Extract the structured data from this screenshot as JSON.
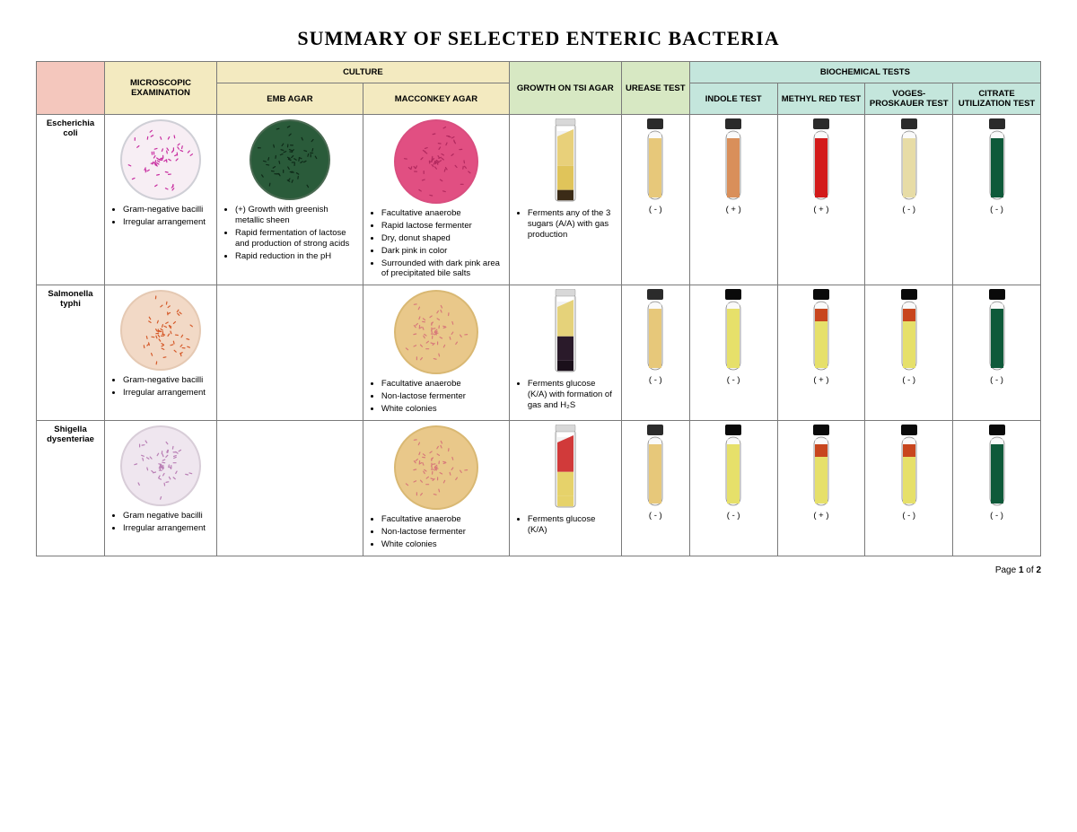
{
  "title": "SUMMARY OF SELECTED ENTERIC BACTERIA",
  "footer": {
    "prefix": "Page ",
    "current": "1",
    "of": " of ",
    "total": "2"
  },
  "colors": {
    "hdr_pink": "#f4c7bd",
    "hdr_cream": "#f3eac0",
    "hdr_green": "#d7e8c3",
    "hdr_teal": "#c4e6dc",
    "border": "#7a7a7a"
  },
  "headers": {
    "microscopic": "MICROSCOPIC EXAMINATION",
    "culture": "CULTURE",
    "emb": "EMB AGAR",
    "macconkey": "MACCONKEY AGAR",
    "tsi": "GROWTH ON TSI AGAR",
    "urease": "UREASE TEST",
    "biochem": "BIOCHEMICAL TESTS",
    "indole": "INDOLE TEST",
    "methylred": "METHYL RED TEST",
    "vp": "VOGES-PROSKAUER TEST",
    "citrate": "CITRATE UTILIZATION TEST"
  },
  "organisms": [
    {
      "name": "Escherichia coli",
      "micro_bullets": [
        "Gram-negative bacilli",
        "Irregular arrangement"
      ],
      "emb_bullets": [
        "(+) Growth with greenish metallic sheen",
        "Rapid fermentation of lactose and production of strong acids",
        "Rapid reduction in the pH"
      ],
      "mac_bullets": [
        "Facultative anaerobe",
        "Rapid lactose fermenter",
        "Dry, donut shaped",
        "Dark pink in color",
        "Surrounded with dark pink area of precipitated bile salts"
      ],
      "tsi_bullets": [
        "Ferments any of the 3 sugars (A/A) with gas production"
      ],
      "urease": "( - )",
      "indole": "( + )",
      "methylred": "( + )",
      "vp": "( - )",
      "citrate": "( - )",
      "img": {
        "micro": {
          "type": "plate",
          "bg": "#f7eef4",
          "dots": "#c82da0",
          "border": "#cfcfd6"
        },
        "emb": {
          "type": "plate",
          "bg": "#2a5b3a",
          "dots": "#0e2a18",
          "border": "#4a6a52"
        },
        "mac": {
          "type": "plate",
          "bg": "#e14f82",
          "dots": "#b32a5f",
          "border": "#d94e7f"
        },
        "tsi": {
          "type": "slant",
          "top": "#e8d07a",
          "bottom": "#e0c45a",
          "butt": "#3b2b17"
        },
        "urease": {
          "type": "tube",
          "liquid": "#e7c87a",
          "cap": "#2b2b2b"
        },
        "indole": {
          "type": "tube",
          "liquid": "#d98f5a",
          "cap": "#2b2b2b"
        },
        "mr": {
          "type": "tube",
          "liquid": "#d31a1a",
          "cap": "#2b2b2b"
        },
        "vp": {
          "type": "tube",
          "liquid": "#e7dca6",
          "cap": "#2b2b2b"
        },
        "cit": {
          "type": "tube",
          "liquid": "#0f5a3a",
          "cap": "#2b2b2b"
        }
      }
    },
    {
      "name": "Salmonella typhi",
      "micro_bullets": [
        "Gram-negative bacilli",
        "Irregular arrangement"
      ],
      "emb_bullets": [],
      "mac_bullets": [
        "Facultative anaerobe",
        "Non-lactose fermenter",
        "White colonies"
      ],
      "tsi_bullets": [
        "Ferments glucose (K/A) with formation of gas and H₂S"
      ],
      "urease": "( - )",
      "indole": "( - )",
      "methylred": "( + )",
      "vp": "( - )",
      "citrate": "( - )",
      "img": {
        "micro": {
          "type": "plate",
          "bg": "#f2d9c6",
          "dots": "#d55a2a",
          "border": "#e5c9b3"
        },
        "emb": null,
        "mac": {
          "type": "plate",
          "bg": "#e9c88a",
          "dots": "#d87a7a",
          "border": "#d9b873"
        },
        "tsi": {
          "type": "slant",
          "top": "#e5d27a",
          "bottom": "#2a1a2a",
          "butt": "#1a0f1a"
        },
        "urease": {
          "type": "tube",
          "liquid": "#e7c87a",
          "cap": "#2b2b2b"
        },
        "indole": {
          "type": "tube",
          "liquid": "#e6e06a",
          "cap": "#0a0a0a"
        },
        "mr": {
          "type": "tube",
          "liquid_top": "#c8461e",
          "liquid": "#e6e06a",
          "cap": "#0a0a0a"
        },
        "vp": {
          "type": "tube",
          "liquid_top": "#c8461e",
          "liquid": "#e6e06a",
          "cap": "#0a0a0a"
        },
        "cit": {
          "type": "tube",
          "liquid": "#0f5a3a",
          "cap": "#0a0a0a"
        }
      }
    },
    {
      "name": "Shigella dysenteriae",
      "micro_bullets": [
        "Gram negative bacilli",
        "Irregular arrangement"
      ],
      "emb_bullets": [],
      "mac_bullets": [
        "Facultative anaerobe",
        "Non-lactose fermenter",
        "White colonies"
      ],
      "tsi_bullets": [
        "Ferments glucose (K/A)"
      ],
      "urease": "( - )",
      "indole": "( - )",
      "methylred": "( + )",
      "vp": "( - )",
      "citrate": "( - )",
      "img": {
        "micro": {
          "type": "plate",
          "bg": "#efe6ef",
          "dots": "#b97fb5",
          "border": "#d8cdd8"
        },
        "emb": null,
        "mac": {
          "type": "plate",
          "bg": "#e9c88a",
          "dots": "#d87a7a",
          "border": "#d9b873"
        },
        "tsi": {
          "type": "slant",
          "top": "#d13a3a",
          "bottom": "#e6d26a",
          "butt": "#e6d26a"
        },
        "urease": {
          "type": "tube",
          "liquid": "#e7c87a",
          "cap": "#2b2b2b"
        },
        "indole": {
          "type": "tube",
          "liquid": "#e6e06a",
          "cap": "#0a0a0a"
        },
        "mr": {
          "type": "tube",
          "liquid_top": "#c8461e",
          "liquid": "#e6e06a",
          "cap": "#0a0a0a"
        },
        "vp": {
          "type": "tube",
          "liquid_top": "#c8461e",
          "liquid": "#e6e06a",
          "cap": "#0a0a0a"
        },
        "cit": {
          "type": "tube",
          "liquid": "#0f5a3a",
          "cap": "#0a0a0a"
        }
      }
    }
  ]
}
